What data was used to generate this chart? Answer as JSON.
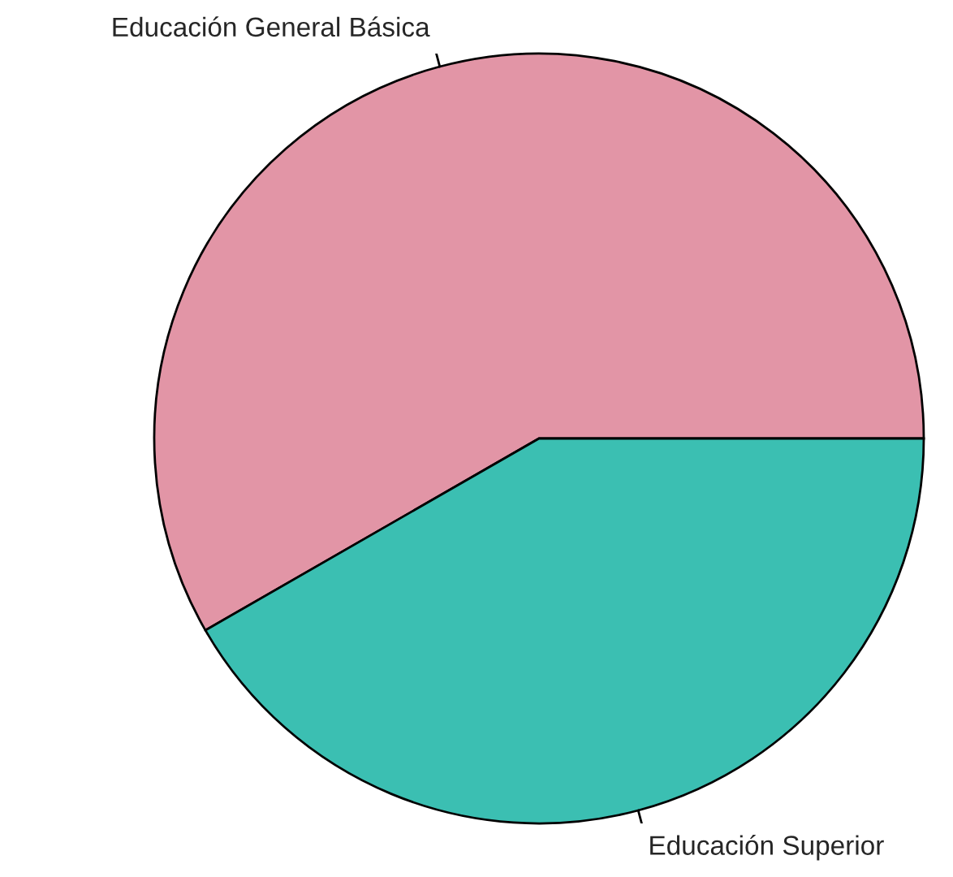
{
  "chart_data": {
    "type": "pie",
    "categories": [
      "Educación General Básica",
      "Educación Superior"
    ],
    "values": [
      58.3,
      41.7
    ],
    "colors": [
      "#e295a6",
      "#3bbfb2"
    ]
  }
}
